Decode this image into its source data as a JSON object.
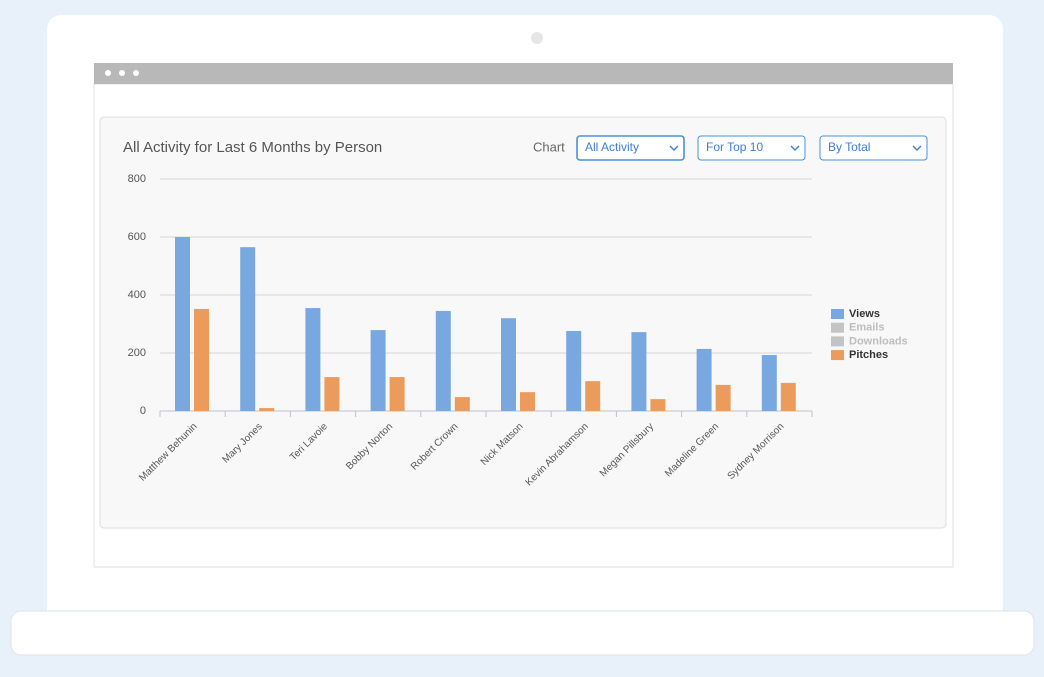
{
  "controls": {
    "chart_label": "Chart",
    "dropdowns": [
      "All Activity",
      "For Top 10",
      "By Total"
    ]
  },
  "chart_data": {
    "type": "bar",
    "title": "All Activity for Last 6 Months by Person",
    "categories": [
      "Matthew Behunin",
      "Mary Jones",
      "Teri Lavoie",
      "Bobby Norton",
      "Robert Crown",
      "Nick Matson",
      "Kevin Abrahamson",
      "Megan Pillsbury",
      "Madeline Green",
      "Sydney Morrison"
    ],
    "series": [
      {
        "name": "Views",
        "color": "#79a8e1",
        "values": [
          600,
          565,
          355,
          279,
          345,
          320,
          276,
          272,
          214,
          193
        ]
      },
      {
        "name": "Emails",
        "color": "#c4c4c4",
        "hidden": true,
        "values": [
          null,
          null,
          null,
          null,
          null,
          null,
          null,
          null,
          null,
          null
        ]
      },
      {
        "name": "Downloads",
        "color": "#c4c4c4",
        "hidden": true,
        "values": [
          null,
          null,
          null,
          null,
          null,
          null,
          null,
          null,
          null,
          null
        ]
      },
      {
        "name": "Pitches",
        "color": "#eb9b5c",
        "values": [
          352,
          10,
          117,
          117,
          48,
          65,
          103,
          41,
          90,
          97
        ]
      }
    ],
    "ylim": [
      0,
      800
    ],
    "yticks": [
      0,
      200,
      400,
      600,
      800
    ],
    "grid": true,
    "legend": "right"
  }
}
